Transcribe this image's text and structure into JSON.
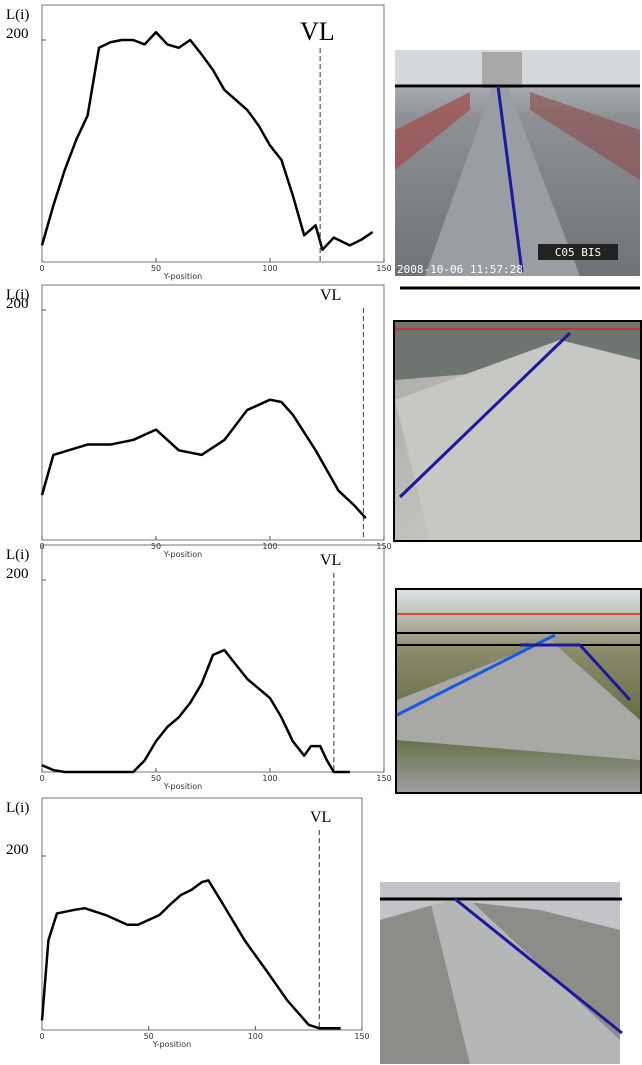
{
  "chart_data": [
    {
      "type": "line",
      "y_label": "L(i)",
      "x_label": "Y-position",
      "annotation": "VL",
      "vl_x": 122,
      "x": [
        0,
        5,
        10,
        15,
        20,
        25,
        30,
        35,
        40,
        45,
        50,
        55,
        60,
        65,
        70,
        75,
        80,
        85,
        90,
        95,
        100,
        105,
        110,
        115,
        120,
        123,
        128,
        135,
        140,
        145
      ],
      "values": [
        15,
        51,
        83,
        110,
        132,
        193,
        198,
        200,
        200,
        196,
        207,
        196,
        193,
        200,
        187,
        173,
        155,
        146,
        137,
        123,
        105,
        92,
        60,
        24,
        33,
        11,
        22,
        15,
        20,
        27
      ],
      "xlim": [
        0,
        150
      ],
      "ylim": [
        0,
        200
      ],
      "xticks": [
        0,
        50,
        100,
        150
      ],
      "yticks": [
        200
      ],
      "color": "#000000"
    },
    {
      "type": "line",
      "y_label": "L(i)",
      "x_label": "Y-position",
      "annotation": "VL",
      "vl_x": 141,
      "x": [
        0,
        5,
        10,
        20,
        30,
        40,
        50,
        55,
        60,
        70,
        80,
        90,
        100,
        105,
        110,
        120,
        130,
        137,
        142
      ],
      "values": [
        39,
        74,
        77,
        83,
        83,
        87,
        96,
        87,
        78,
        74,
        87,
        113,
        122,
        120,
        109,
        78,
        43,
        30,
        19
      ],
      "xlim": [
        0,
        150
      ],
      "ylim": [
        0,
        200
      ],
      "xticks": [
        0,
        50,
        100,
        150
      ],
      "yticks": [
        200
      ],
      "color": "#000000"
    },
    {
      "type": "line",
      "y_label": "L(i)",
      "x_label": "Y-position",
      "annotation": "VL",
      "vl_x": 128,
      "x": [
        0,
        5,
        10,
        40,
        45,
        50,
        55,
        60,
        65,
        70,
        75,
        80,
        85,
        90,
        100,
        105,
        110,
        115,
        118,
        122,
        125,
        128,
        135
      ],
      "values": [
        7,
        2,
        0,
        0,
        12,
        32,
        47,
        57,
        72,
        92,
        122,
        127,
        112,
        97,
        77,
        57,
        32,
        17,
        27,
        27,
        12,
        0,
        0
      ],
      "xlim": [
        0,
        150
      ],
      "ylim": [
        0,
        200
      ],
      "xticks": [
        0,
        50,
        100,
        150
      ],
      "yticks": [
        200
      ],
      "color": "#000000"
    },
    {
      "type": "line",
      "y_label": "L(i)",
      "x_label": "Y-position",
      "annotation": "VL",
      "vl_x": 130,
      "x": [
        0,
        3,
        7,
        15,
        20,
        30,
        40,
        45,
        55,
        60,
        65,
        70,
        75,
        78,
        85,
        95,
        105,
        115,
        125,
        130,
        140
      ],
      "values": [
        11,
        103,
        134,
        138,
        140,
        132,
        121,
        121,
        132,
        144,
        155,
        161,
        170,
        172,
        144,
        103,
        69,
        34,
        6,
        2,
        2
      ],
      "xlim": [
        0,
        150
      ],
      "ylim": [
        0,
        200
      ],
      "xticks": [
        0,
        50,
        100,
        150
      ],
      "yticks": [
        200
      ],
      "color": "#000000"
    }
  ],
  "images": [
    {
      "timestamp": "2008-10-06  11:57:28",
      "label": "C05 BIS"
    }
  ]
}
